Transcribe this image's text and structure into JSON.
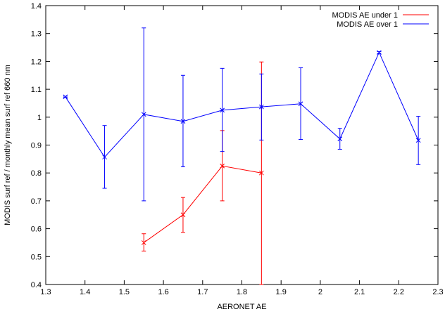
{
  "chart_data": {
    "type": "line",
    "title": "",
    "xlabel": "AERONET AE",
    "ylabel": "MODIS surf ref / monthly mean surf ref 660 nm",
    "xlim": [
      1.3,
      2.3
    ],
    "ylim": [
      0.4,
      1.4
    ],
    "x_ticks": [
      1.3,
      1.4,
      1.5,
      1.6,
      1.7,
      1.8,
      1.9,
      2,
      2.1,
      2.2,
      2.3
    ],
    "y_ticks": [
      0.4,
      0.5,
      0.6,
      0.7,
      0.8,
      0.9,
      1,
      1.1,
      1.2,
      1.3,
      1.4
    ],
    "x_tick_labels": [
      "1.3",
      "1.4",
      "1.5",
      "1.6",
      "1.7",
      "1.8",
      "1.9",
      "2",
      "2.1",
      "2.2",
      "2.3"
    ],
    "y_tick_labels": [
      "0.4",
      "0.5",
      "0.6",
      "0.7",
      "0.8",
      "0.9",
      "1",
      "1.1",
      "1.2",
      "1.3",
      "1.4"
    ],
    "grid": false,
    "legend_position": "top-right",
    "series": [
      {
        "name": "MODIS AE under 1",
        "color": "#ff0000",
        "points": [
          {
            "x": 1.55,
            "y": 0.55,
            "ylow": 0.52,
            "yhigh": 0.582
          },
          {
            "x": 1.65,
            "y": 0.65,
            "ylow": 0.587,
            "yhigh": 0.712
          },
          {
            "x": 1.75,
            "y": 0.825,
            "ylow": 0.7,
            "yhigh": 0.952
          },
          {
            "x": 1.85,
            "y": 0.8,
            "ylow": 0.4,
            "yhigh": 1.198
          }
        ]
      },
      {
        "name": "MODIS AE over 1",
        "color": "#0000ff",
        "points": [
          {
            "x": 1.35,
            "y": 1.073,
            "ylow": 1.071,
            "yhigh": 1.075
          },
          {
            "x": 1.45,
            "y": 0.857,
            "ylow": 0.745,
            "yhigh": 0.97
          },
          {
            "x": 1.55,
            "y": 1.01,
            "ylow": 0.7,
            "yhigh": 1.32
          },
          {
            "x": 1.65,
            "y": 0.985,
            "ylow": 0.822,
            "yhigh": 1.15
          },
          {
            "x": 1.75,
            "y": 1.025,
            "ylow": 0.877,
            "yhigh": 1.175
          },
          {
            "x": 1.85,
            "y": 1.037,
            "ylow": 0.918,
            "yhigh": 1.155
          },
          {
            "x": 1.95,
            "y": 1.048,
            "ylow": 0.92,
            "yhigh": 1.177
          },
          {
            "x": 2.05,
            "y": 0.922,
            "ylow": 0.885,
            "yhigh": 0.96
          },
          {
            "x": 2.15,
            "y": 1.232,
            "ylow": 1.229,
            "yhigh": 1.235
          },
          {
            "x": 2.25,
            "y": 0.917,
            "ylow": 0.83,
            "yhigh": 1.003
          }
        ]
      }
    ]
  }
}
